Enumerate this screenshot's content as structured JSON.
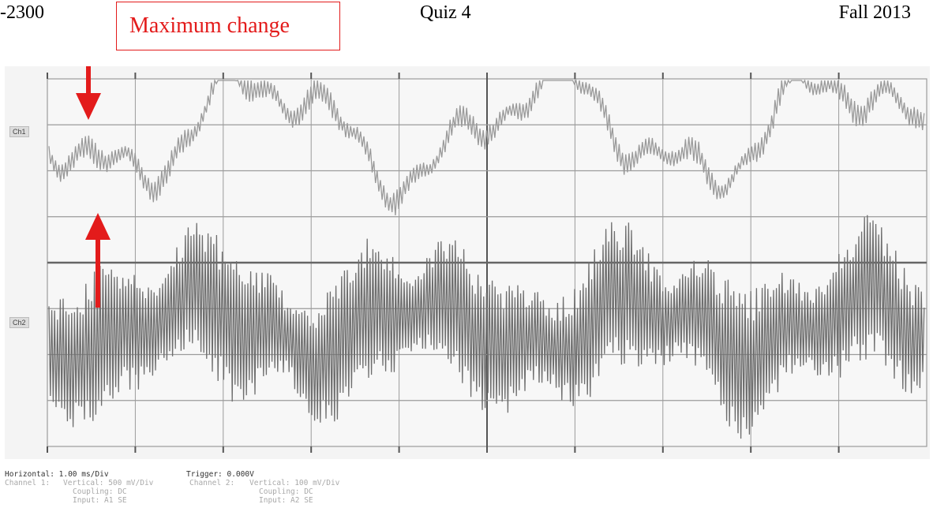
{
  "header": {
    "left": "-2300",
    "center": "Quiz 4",
    "right": "Fall 2013"
  },
  "annotation": {
    "text": "Maximum change",
    "color": "#e31b1b"
  },
  "scope": {
    "ch1_tag": "Ch1",
    "ch2_tag": "Ch2",
    "trace1_color": "#9a9a9a",
    "trace2_color": "#6e6e6e",
    "grid_color": "#9b9b9b"
  },
  "info": {
    "horizontal": "Horizontal:  1.00 ms/Div",
    "trigger": "Trigger: 0.000V",
    "channel1_label": "Channel 1:",
    "channel1_vertical": "Vertical: 500 mV/Div",
    "channel1_coupling": "Coupling: DC",
    "channel1_input": "Input: A1 SE",
    "channel2_label": "Channel 2:",
    "channel2_vertical": "Vertical: 100 mV/Div",
    "channel2_coupling": "Coupling: DC",
    "channel2_input": "Input: A2 SE"
  }
}
